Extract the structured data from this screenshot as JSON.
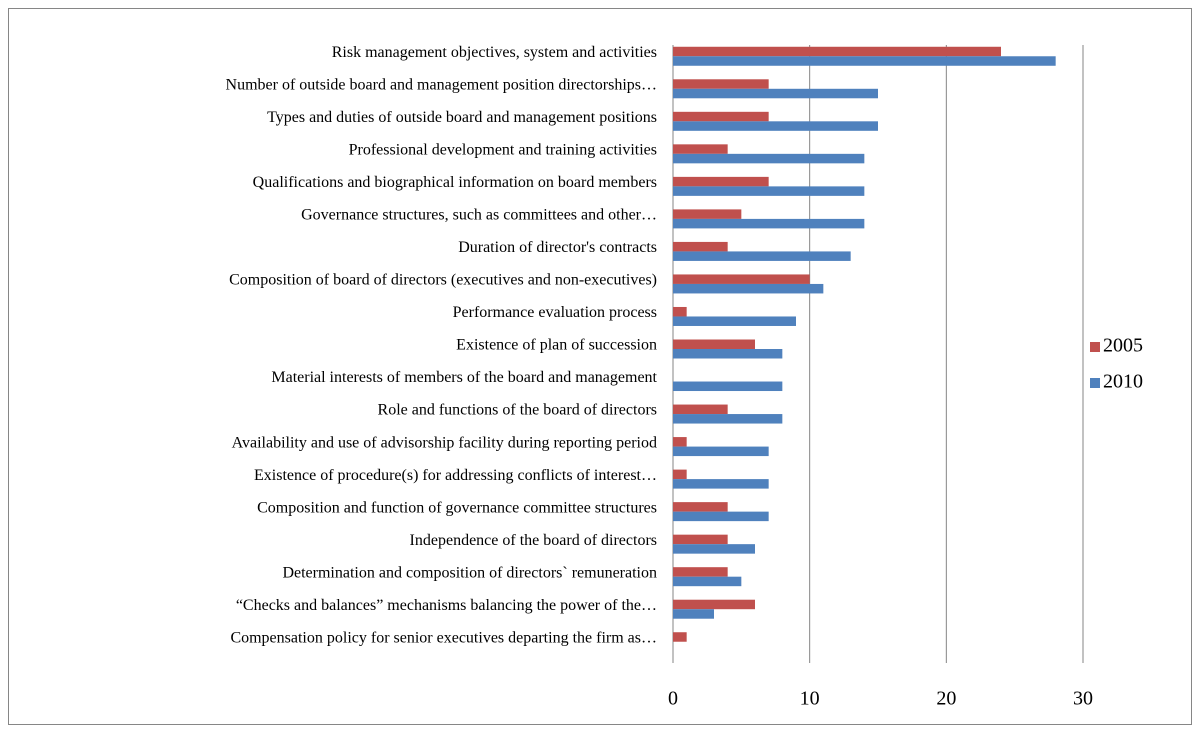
{
  "chart_data": {
    "type": "barh",
    "categories": [
      "Risk management objectives, system and activities",
      "Number of outside board and management position directorships…",
      "Types and duties of outside board and management positions",
      "Professional development and training activities",
      "Qualifications and biographical information on board members",
      "Governance structures, such as committees and other…",
      "Duration of director's contracts",
      "Composition of board of directors (executives and non-executives)",
      "Performance evaluation process",
      "Existence of plan of succession",
      "Material interests of members of the board and management",
      "Role and functions of the board of directors",
      "Availability and use of advisorship facility during reporting period",
      "Existence of procedure(s) for addressing conflicts of interest…",
      "Composition and function of governance committee structures",
      "Independence of the board of directors",
      "Determination and composition of directors` remuneration",
      "“Checks and balances” mechanisms balancing the power of the…",
      "Compensation policy for senior executives departing the firm as…"
    ],
    "series": [
      {
        "name": "2005",
        "color": "#c0504d",
        "values": [
          24,
          7,
          7,
          4,
          7,
          5,
          4,
          10,
          1,
          6,
          0,
          4,
          1,
          1,
          4,
          4,
          4,
          6,
          1
        ]
      },
      {
        "name": "2010",
        "color": "#4f81bd",
        "values": [
          28,
          15,
          15,
          14,
          14,
          14,
          13,
          11,
          9,
          8,
          8,
          8,
          7,
          7,
          7,
          6,
          5,
          3,
          0
        ]
      }
    ],
    "xlim": [
      0,
      30
    ],
    "xticks": [
      0,
      10,
      20,
      30
    ],
    "grid": true,
    "legend": "right"
  }
}
